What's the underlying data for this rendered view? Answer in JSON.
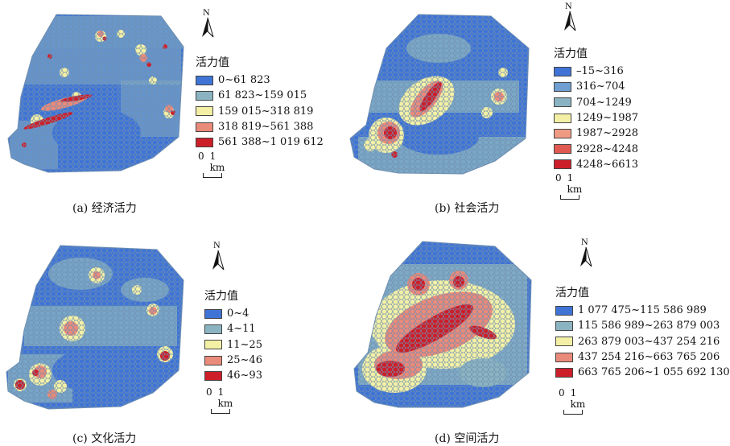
{
  "colors": {
    "background": "#ffffff",
    "class1": "#3f74d6",
    "class2": "#8bb4c2",
    "class3": "#f3f0a6",
    "class4": "#ea8a7a",
    "class5": "#cc1f2a",
    "outline": "#6f8fb0"
  },
  "panels": [
    {
      "caption": "(a) 经济活力",
      "north_label": "N",
      "legend_title": "活力值",
      "classes": [
        "0~61 823",
        "61 823~159 015",
        "159 015~318 819",
        "318 819~561 388",
        "561 388~1 019 612"
      ],
      "scale": {
        "left": "0",
        "right": "1 km"
      }
    },
    {
      "caption": "(b) 社会活力",
      "north_label": "N",
      "legend_title": "活力值",
      "classes": [
        "–15~316",
        "316~704",
        "704~1249",
        "1249~1987",
        "1987~2928",
        "2928~4248",
        "4248~6613"
      ],
      "scale": {
        "left": "0",
        "right": "1 km"
      }
    },
    {
      "caption": "(c) 文化活力",
      "north_label": "N",
      "legend_title": "活力值",
      "classes": [
        "0~4",
        "4~11",
        "11~25",
        "25~46",
        "46~93"
      ],
      "scale": {
        "left": "0",
        "right": "1 km"
      }
    },
    {
      "caption": "(d) 空间活力",
      "north_label": "N",
      "legend_title": "活力值",
      "classes": [
        "1 077 475~115 586 989",
        "115 586 989~263 879 003",
        "263 879 003~437 254 216",
        "437 254 216~663 765 206",
        "663 765 206~1 055 692 130"
      ],
      "scale": {
        "left": "0",
        "right": "1 km"
      }
    }
  ]
}
